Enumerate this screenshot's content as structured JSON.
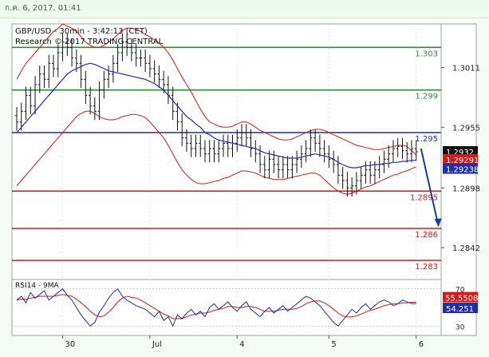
{
  "header": {
    "timestamp": "ก.ค. 6, 2017, 01:41"
  },
  "chart_data": {
    "type": "candlestick",
    "title": "GBP/USD - 30min - 3:42:13 (CET)",
    "subtitle": "Research © 2017 TRADING CENTRAL",
    "ylim": [
      1.2812,
      1.3052
    ],
    "y_ticks": [
      1.3011,
      1.2955,
      1.2898,
      1.2842
    ],
    "x_ticks": [
      {
        "label": "30",
        "i": 10
      },
      {
        "label": "Jul",
        "i": 29
      },
      {
        "label": "4",
        "i": 48
      },
      {
        "label": "5",
        "i": 68
      },
      {
        "label": "6",
        "i": 87
      }
    ],
    "levels": [
      {
        "label": "1.303",
        "value": 1.303,
        "color": "#2e8b3a"
      },
      {
        "label": "1.299",
        "value": 1.299,
        "color": "#2e8b3a"
      },
      {
        "label": "1.295",
        "value": 1.295,
        "color": "#1f2fa8"
      },
      {
        "label": "1.2895",
        "value": 1.2895,
        "color": "#d61a1a"
      },
      {
        "label": "1.286",
        "value": 1.286,
        "color": "#d61a1a"
      },
      {
        "label": "1.283",
        "value": 1.283,
        "color": "#d61a1a"
      }
    ],
    "last_price": {
      "label": "1.2932",
      "value": 1.2932
    },
    "upper_band": {
      "label": "1.29291",
      "value": 1.29291
    },
    "moving_average": {
      "label": "1.29238",
      "value": 1.29238
    },
    "close": [
      1.296,
      1.297,
      1.2985,
      1.2975,
      1.2995,
      1.3005,
      1.3,
      1.3015,
      1.301,
      1.3025,
      1.3035,
      1.303,
      1.302,
      1.3015,
      1.3,
      1.2985,
      1.2975,
      1.297,
      1.299,
      1.3,
      1.3005,
      1.3015,
      1.3025,
      1.3035,
      1.303,
      1.3025,
      1.302,
      1.302,
      1.3015,
      1.301,
      1.3005,
      1.3,
      1.2995,
      1.2985,
      1.297,
      1.296,
      1.2945,
      1.294,
      1.2935,
      1.294,
      1.2935,
      1.293,
      1.2935,
      1.293,
      1.2935,
      1.294,
      1.2935,
      1.294,
      1.2945,
      1.295,
      1.2945,
      1.2935,
      1.293,
      1.292,
      1.2915,
      1.2925,
      1.292,
      1.2915,
      1.292,
      1.2915,
      1.292,
      1.2925,
      1.293,
      1.2935,
      1.2945,
      1.294,
      1.2935,
      1.293,
      1.2925,
      1.292,
      1.291,
      1.2905,
      1.2898,
      1.29,
      1.2905,
      1.291,
      1.2915,
      1.291,
      1.2915,
      1.292,
      1.2925,
      1.293,
      1.2935,
      1.2937,
      1.2933,
      1.293,
      1.2935,
      1.2932
    ],
    "ma": [
      1.295,
      1.2955,
      1.296,
      1.2965,
      1.297,
      1.2975,
      1.298,
      1.2985,
      1.299,
      1.2995,
      1.3,
      1.3005,
      1.3008,
      1.301,
      1.3012,
      1.3014,
      1.3015,
      1.3014,
      1.3012,
      1.301,
      1.3008,
      1.3007,
      1.3006,
      1.3005,
      1.3004,
      1.3003,
      1.3002,
      1.3001,
      1.3,
      1.2998,
      1.2996,
      1.2993,
      1.299,
      1.2985,
      1.298,
      1.2975,
      1.297,
      1.2965,
      1.2962,
      1.2958,
      1.2955,
      1.295,
      1.2948,
      1.2945,
      1.2943,
      1.2942,
      1.2941,
      1.294,
      1.2939,
      1.2938,
      1.2937,
      1.2936,
      1.2935,
      1.2933,
      1.2931,
      1.293,
      1.2929,
      1.2928,
      1.2927,
      1.2926,
      1.2926,
      1.2926,
      1.2927,
      1.2928,
      1.2929,
      1.293,
      1.2929,
      1.2928,
      1.2927,
      1.2925,
      1.2922,
      1.292,
      1.2918,
      1.2917,
      1.2917,
      1.2918,
      1.2919,
      1.2919,
      1.292,
      1.292,
      1.2921,
      1.2921,
      1.2922,
      1.2922,
      1.2923,
      1.2923,
      1.2924,
      1.29238
    ],
    "band_up": [
      1.3,
      1.3008,
      1.3015,
      1.302,
      1.3025,
      1.303,
      1.3035,
      1.304,
      1.3045,
      1.3048,
      1.3052,
      1.305,
      1.3048,
      1.3045,
      1.304,
      1.3035,
      1.3032,
      1.303,
      1.303,
      1.3032,
      1.3035,
      1.3038,
      1.3042,
      1.3046,
      1.3048,
      1.3048,
      1.3047,
      1.3045,
      1.3042,
      1.304,
      1.3037,
      1.3034,
      1.303,
      1.3025,
      1.3018,
      1.301,
      1.3002,
      1.2995,
      1.2988,
      1.298,
      1.2972,
      1.2965,
      1.296,
      1.2958,
      1.2956,
      1.2955,
      1.2955,
      1.2956,
      1.2958,
      1.296,
      1.296,
      1.2958,
      1.2955,
      1.2952,
      1.295,
      1.2948,
      1.2946,
      1.2944,
      1.2943,
      1.2943,
      1.2944,
      1.2946,
      1.2948,
      1.295,
      1.2952,
      1.2953,
      1.2953,
      1.2952,
      1.295,
      1.2948,
      1.2946,
      1.2944,
      1.2942,
      1.294,
      1.2938,
      1.2937,
      1.2936,
      1.2935,
      1.2934,
      1.2934,
      1.2935,
      1.2936,
      1.2937,
      1.2938,
      1.2938,
      1.2937,
      1.2933,
      1.29291
    ],
    "band_lo": [
      1.29,
      1.2905,
      1.291,
      1.2915,
      1.292,
      1.2925,
      1.293,
      1.2935,
      1.294,
      1.2945,
      1.295,
      1.2955,
      1.296,
      1.2965,
      1.2968,
      1.297,
      1.297,
      1.2968,
      1.2965,
      1.2963,
      1.2962,
      1.2962,
      1.2963,
      1.2965,
      1.2966,
      1.2967,
      1.2967,
      1.2966,
      1.2964,
      1.296,
      1.2955,
      1.295,
      1.2945,
      1.2938,
      1.293,
      1.2922,
      1.2915,
      1.291,
      1.2906,
      1.2903,
      1.2902,
      1.2902,
      1.2903,
      1.2904,
      1.2905,
      1.2907,
      1.2908,
      1.291,
      1.2912,
      1.2914,
      1.2914,
      1.2913,
      1.2912,
      1.291,
      1.2908,
      1.2907,
      1.2906,
      1.2906,
      1.2906,
      1.2907,
      1.2908,
      1.2909,
      1.291,
      1.2911,
      1.2912,
      1.2912,
      1.291,
      1.2906,
      1.2902,
      1.2898,
      1.2895,
      1.2893,
      1.2892,
      1.2893,
      1.2895,
      1.2897,
      1.2899,
      1.29,
      1.2902,
      1.2904,
      1.2906,
      1.2908,
      1.291,
      1.2911,
      1.2913,
      1.2914,
      1.2916,
      1.2918
    ],
    "projection": {
      "from_value": 1.2935,
      "to_value": 1.2862
    },
    "rsi": {
      "label": "RSI14 - 9MA",
      "ylim": [
        20,
        80
      ],
      "y_ticks": [
        70,
        50,
        30
      ],
      "value_label": "54.251",
      "value": 54.251,
      "ma_label": "55.5508",
      "ma_value": 55.5508,
      "values": [
        58,
        62,
        55,
        66,
        60,
        64,
        68,
        58,
        62,
        66,
        70,
        63,
        58,
        50,
        42,
        36,
        30,
        34,
        45,
        52,
        60,
        66,
        70,
        62,
        58,
        55,
        52,
        50,
        48,
        44,
        40,
        46,
        36,
        40,
        30,
        42,
        38,
        44,
        48,
        42,
        46,
        40,
        50,
        54,
        48,
        52,
        56,
        50,
        46,
        52,
        56,
        48,
        44,
        40,
        46,
        50,
        44,
        48,
        52,
        46,
        50,
        54,
        58,
        62,
        60,
        56,
        52,
        46,
        40,
        34,
        30,
        36,
        42,
        48,
        44,
        50,
        54,
        48,
        52,
        56,
        58,
        56,
        52,
        54,
        58,
        56,
        54.251,
        54.251
      ],
      "ma_values": [
        58,
        59,
        59,
        60,
        61,
        62,
        62,
        62,
        62,
        63,
        64,
        63,
        62,
        59,
        55,
        51,
        46,
        42,
        40,
        41,
        45,
        50,
        56,
        60,
        62,
        61,
        60,
        58,
        55,
        52,
        49,
        46,
        43,
        41,
        38,
        38,
        38,
        40,
        42,
        43,
        44,
        44,
        45,
        47,
        48,
        49,
        51,
        51,
        50,
        50,
        51,
        51,
        50,
        48,
        46,
        46,
        46,
        47,
        48,
        48,
        48,
        49,
        51,
        54,
        56,
        57,
        57,
        55,
        52,
        48,
        44,
        41,
        40,
        40,
        41,
        43,
        45,
        47,
        48,
        50,
        52,
        53,
        54,
        54,
        55,
        55,
        55.5508,
        55.5508
      ]
    }
  }
}
